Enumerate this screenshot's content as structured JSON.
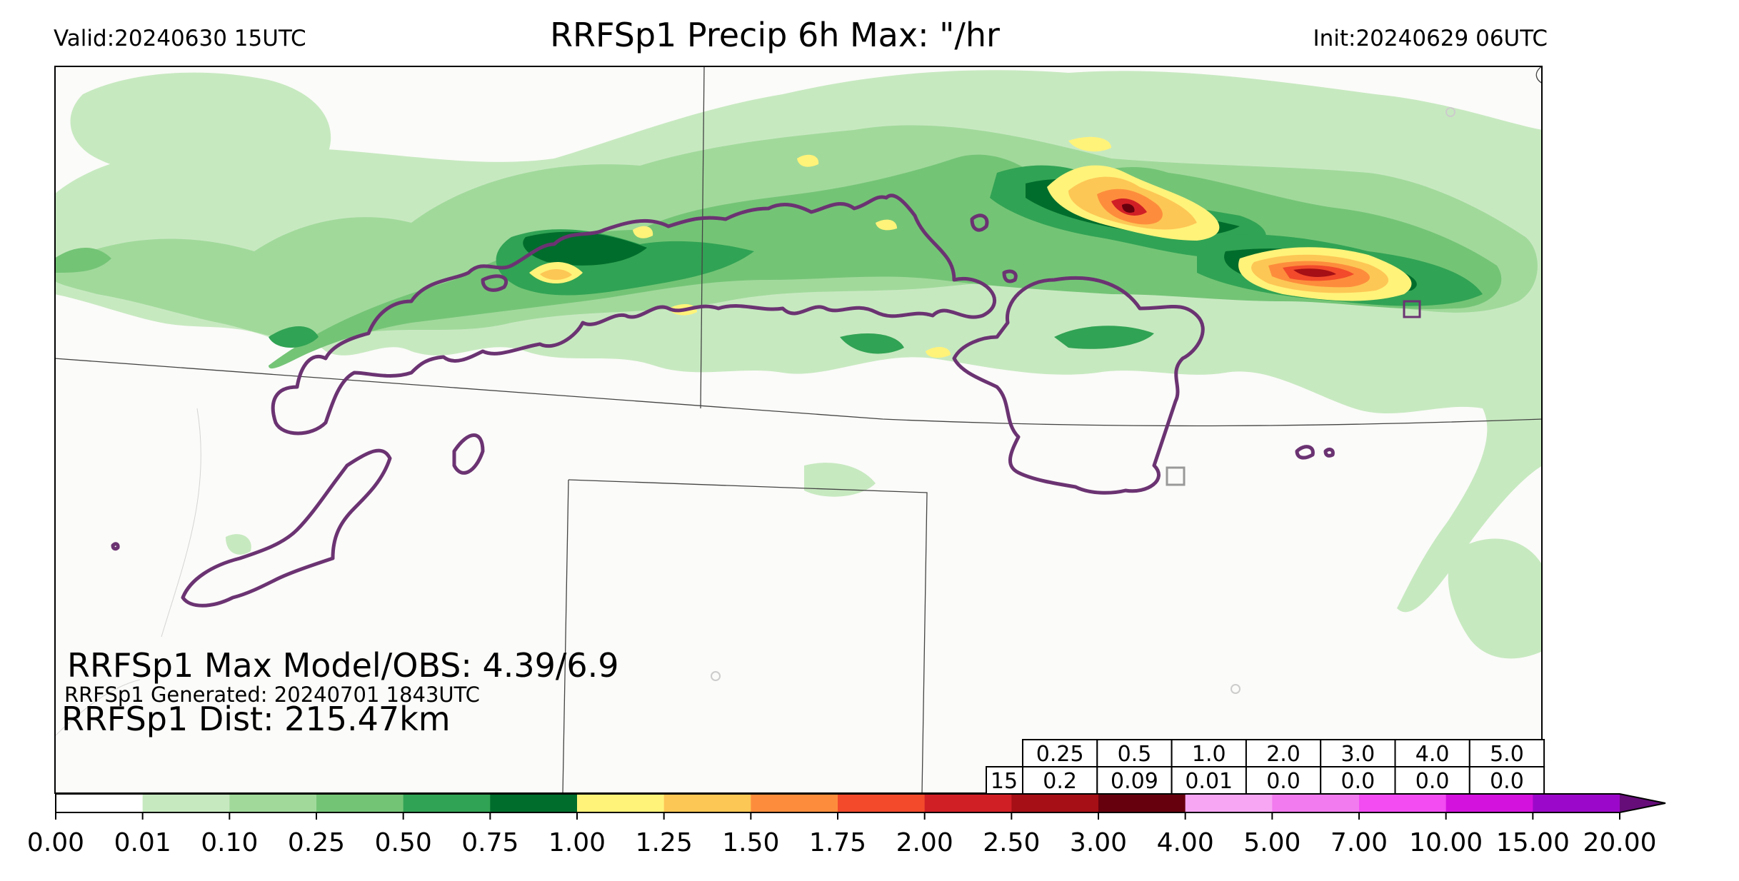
{
  "header": {
    "valid": "Valid:20240630 15UTC",
    "title": "RRFSp1 Precip 6h Max: \"/hr",
    "init": "Init:20240629 06UTC"
  },
  "annotations": {
    "max_model_obs": "RRFSp1 Max Model/OBS: 4.39/6.9",
    "generated": "RRFSp1 Generated: 20240701 1843UTC",
    "distance": "RRFSp1 Dist: 215.47km"
  },
  "stats_table": {
    "thresholds": [
      "0.25",
      "0.5",
      "1.0",
      "2.0",
      "3.0",
      "4.0",
      "5.0"
    ],
    "row_label": "15",
    "values": [
      "0.2",
      "0.09",
      "0.01",
      "0.0",
      "0.0",
      "0.0",
      "0.0"
    ]
  },
  "colorbar": {
    "ticks": [
      "0.00",
      "0.01",
      "0.10",
      "0.25",
      "0.50",
      "0.75",
      "1.00",
      "1.25",
      "1.50",
      "1.75",
      "2.00",
      "2.50",
      "3.00",
      "4.00",
      "5.00",
      "7.00",
      "10.00",
      "15.00",
      "20.00"
    ],
    "colors": [
      "#ffffff",
      "#c7e9c0",
      "#a1d99b",
      "#74c476",
      "#31a354",
      "#006d2c",
      "#fff37a",
      "#fdc755",
      "#fd8d3c",
      "#f24a2b",
      "#d11f26",
      "#a50f15",
      "#67000d",
      "#f7a6f4",
      "#f27bef",
      "#f24cf2",
      "#d412de",
      "#9c08c9"
    ],
    "extend_color": "#660d7a"
  },
  "colors": {
    "obs_contour": "#6b3372",
    "boundary": "#444444"
  }
}
